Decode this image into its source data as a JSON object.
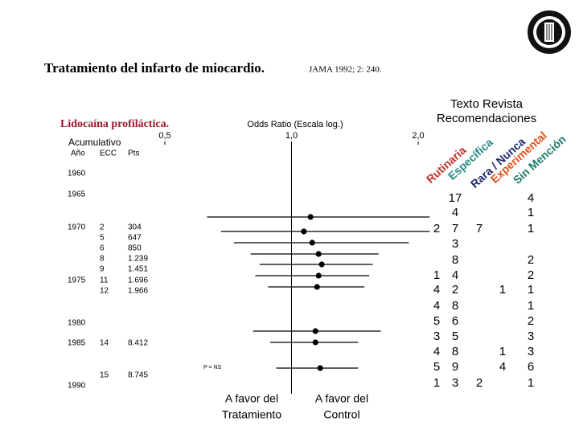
{
  "chart_data": {
    "type": "forest",
    "title": "Tratamiento del infarto de miocardio.",
    "source": "JAMA 1992; 2: 240.",
    "subtitle": "Lidocaína profiláctica.",
    "cumulative_label": "Acumulativo",
    "x_label": "Odds Ratio  (Escala log.)",
    "xlog": true,
    "xlim": [
      0.5,
      2
    ],
    "xticks": [
      {
        "value": 0.5,
        "label": "0,5"
      },
      {
        "value": 1,
        "label": "1,0"
      },
      {
        "value": 2,
        "label": "2,0"
      }
    ],
    "columns": [
      "Año",
      "ECC",
      "Pts"
    ],
    "years": [
      "1960",
      "1965",
      "1970",
      "1975",
      "1980",
      "1985",
      "1990"
    ],
    "studies": [
      {
        "ecc": 2,
        "pts": "304",
        "or": 1.11,
        "ci": [
          0.63,
          2.13
        ]
      },
      {
        "ecc": 5,
        "pts": "647",
        "or": 1.07,
        "ci": [
          0.68,
          2.13
        ]
      },
      {
        "ecc": 6,
        "pts": "850",
        "or": 1.12,
        "ci": [
          0.73,
          1.9
        ]
      },
      {
        "ecc": 8,
        "pts": "1.239",
        "or": 1.16,
        "ci": [
          0.8,
          1.61
        ]
      },
      {
        "ecc": 9,
        "pts": "1.451",
        "or": 1.18,
        "ci": [
          0.84,
          1.56
        ]
      },
      {
        "ecc": 11,
        "pts": "1.696",
        "or": 1.16,
        "ci": [
          0.82,
          1.53
        ]
      },
      {
        "ecc": 12,
        "pts": "1.966",
        "or": 1.15,
        "ci": [
          0.88,
          1.49
        ]
      },
      {
        "ecc": null,
        "pts": null,
        "or": 1.14,
        "ci": [
          0.81,
          1.63
        ]
      },
      {
        "ecc": 14,
        "pts": "8.412",
        "or": 1.14,
        "ci": [
          0.89,
          1.44
        ]
      },
      {
        "ecc": 15,
        "pts": "8.745",
        "or": 1.17,
        "ci": [
          0.92,
          1.44
        ]
      }
    ],
    "p_label": "P = NS",
    "favors_left": [
      "A favor del",
      "Tratamiento"
    ],
    "favors_right": [
      "A favor del",
      "Control"
    ],
    "recommendations": {
      "title": [
        "Texto  Revista",
        "Recomendaciones"
      ],
      "categories": [
        "Rutinaria",
        "Específica",
        "Rara / Nunca",
        "Experimental",
        "Sin Mención"
      ],
      "colors": [
        "#c0302a",
        "#2a8a86",
        "#1f2a6b",
        "#e0521e",
        "#1f7a6e"
      ],
      "rows": [
        [
          null,
          17,
          null,
          null,
          4
        ],
        [
          null,
          4,
          null,
          null,
          1
        ],
        [
          2,
          7,
          7,
          null,
          1
        ],
        [
          null,
          3,
          null,
          null,
          null
        ],
        [
          null,
          8,
          null,
          null,
          2
        ],
        [
          1,
          4,
          null,
          null,
          2
        ],
        [
          4,
          2,
          null,
          1,
          1
        ],
        [
          4,
          8,
          null,
          null,
          1
        ],
        [
          5,
          6,
          null,
          null,
          2
        ],
        [
          3,
          5,
          null,
          null,
          3
        ],
        [
          4,
          8,
          null,
          1,
          3
        ],
        [
          5,
          9,
          null,
          4,
          6
        ],
        [
          1,
          3,
          2,
          null,
          1
        ]
      ]
    }
  }
}
